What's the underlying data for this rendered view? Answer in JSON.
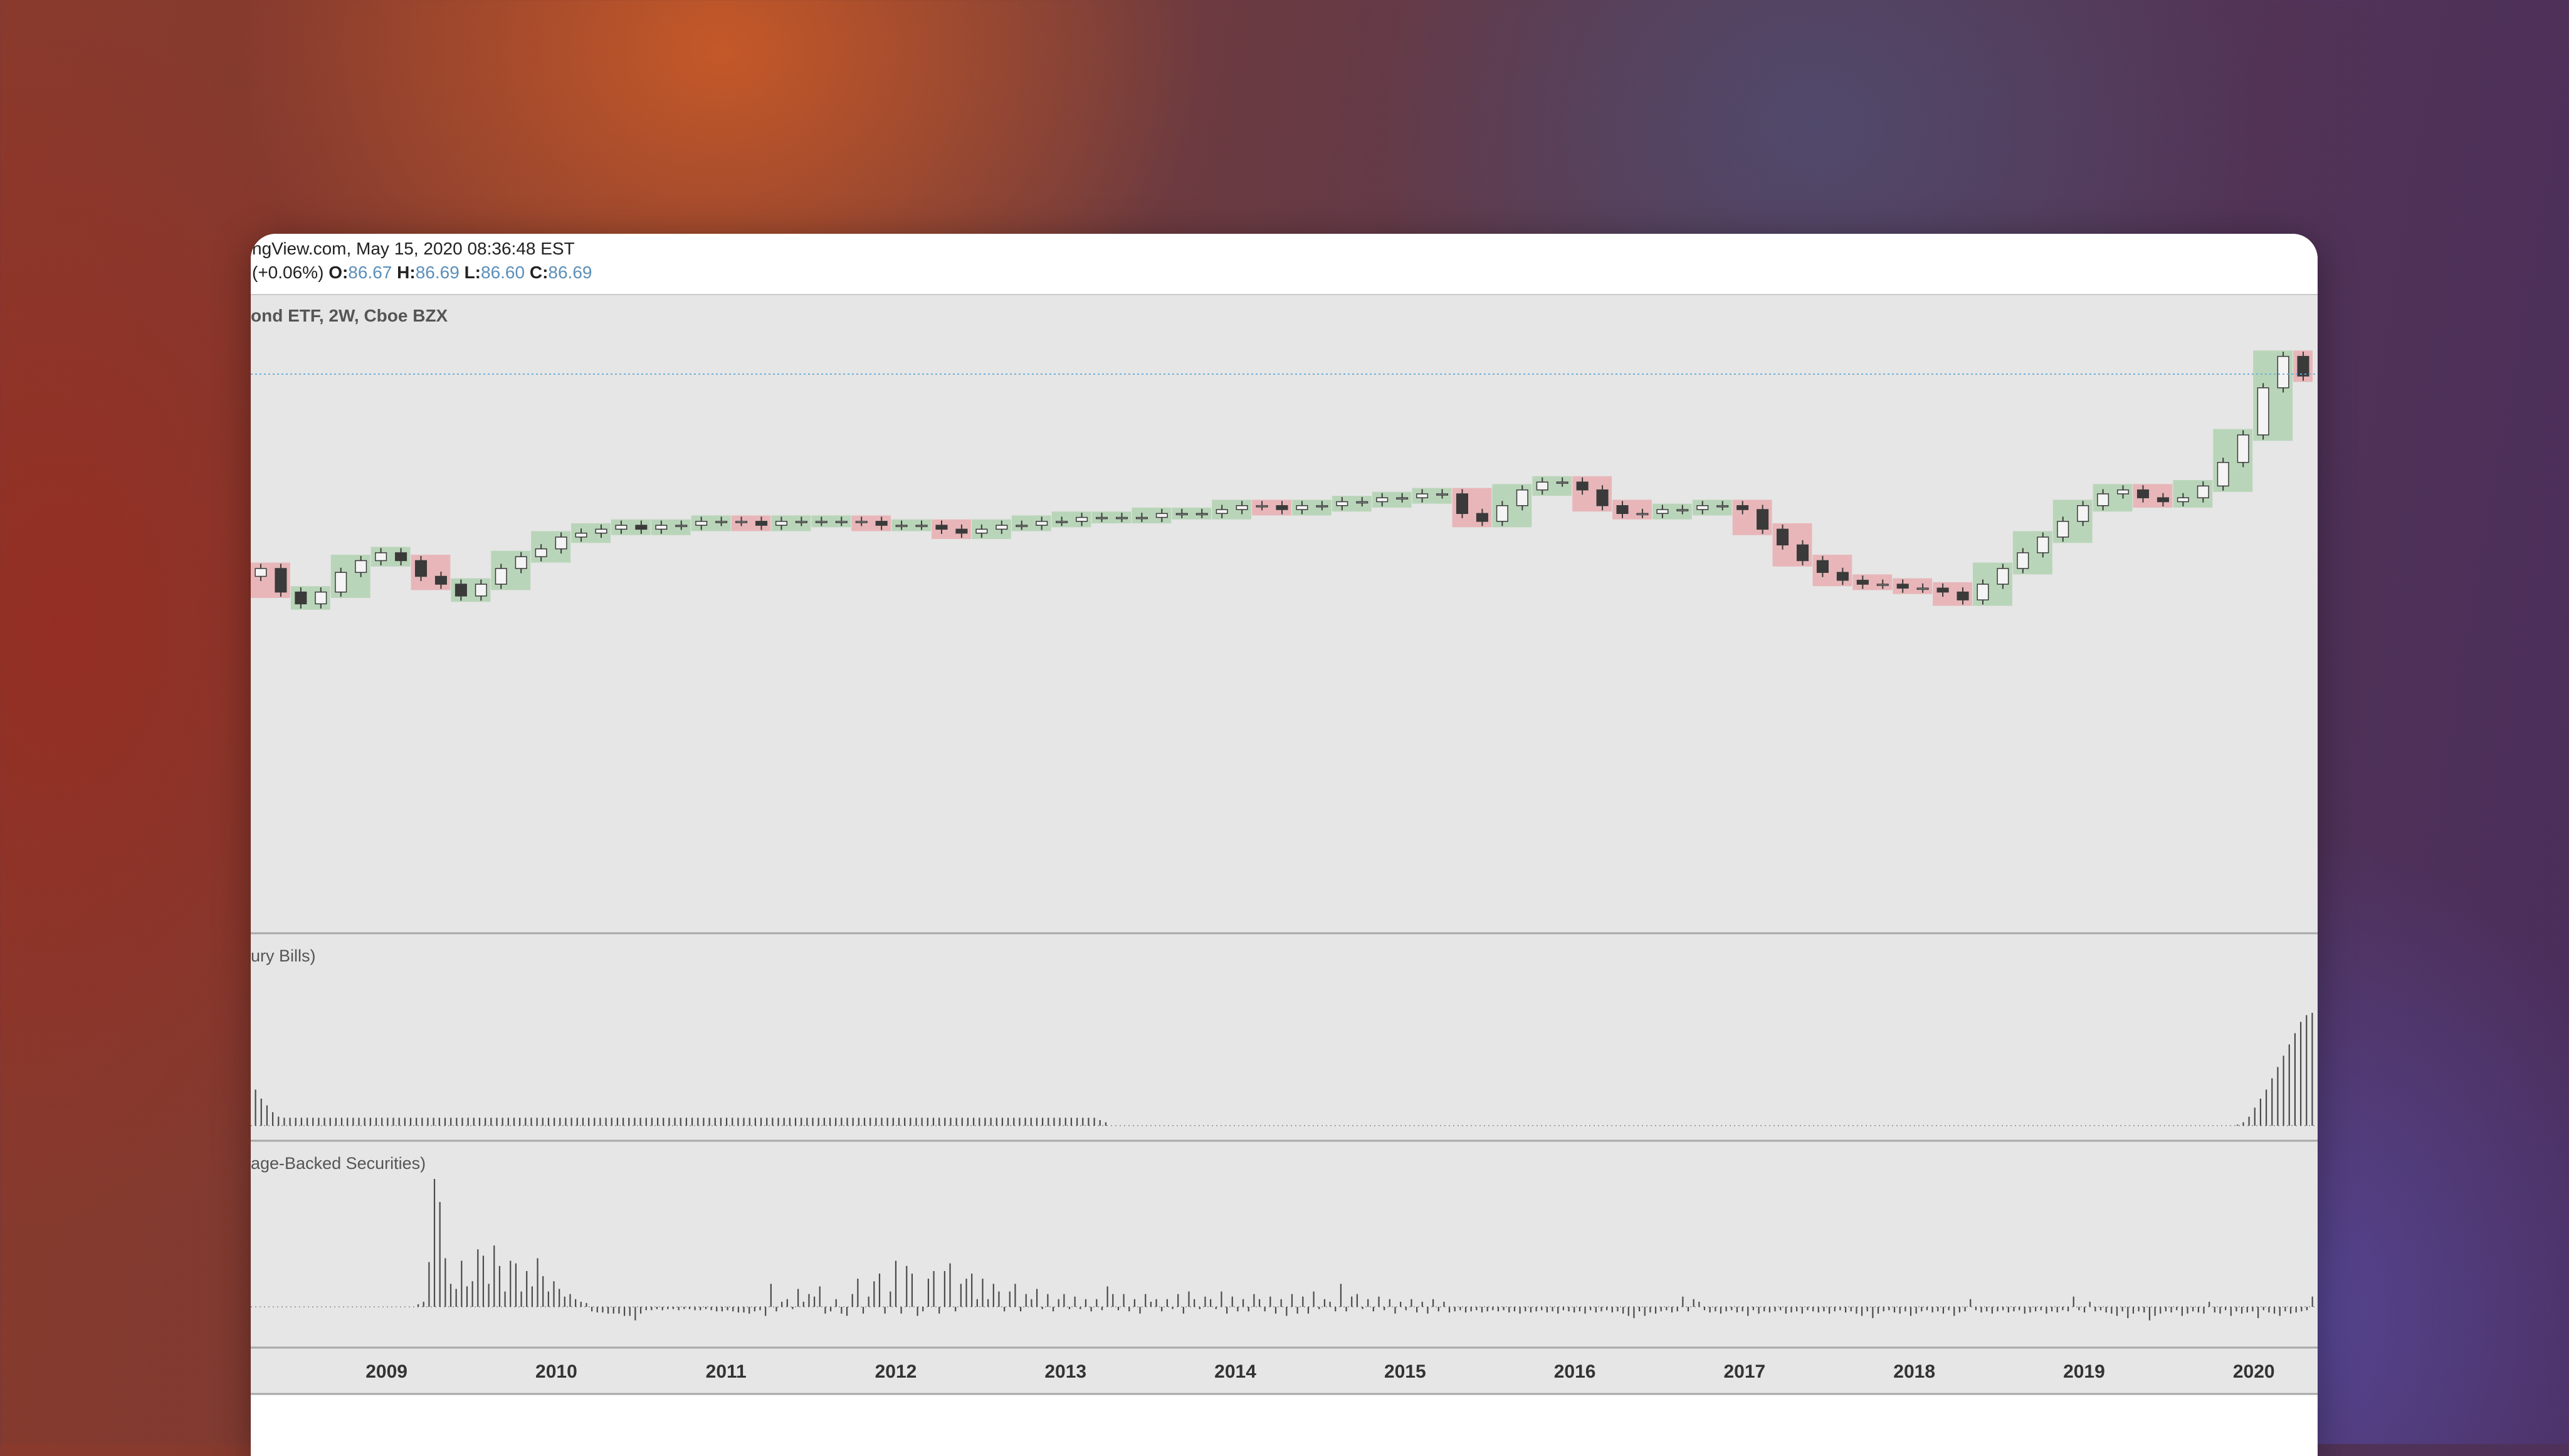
{
  "header": {
    "line1": "ngView.com, May 15, 2020 08:36:48 EST",
    "change": "(+0.06%)",
    "o_label": "O:",
    "o_value": "86.67",
    "h_label": "H:",
    "h_value": "86.69",
    "l_label": "L:",
    "l_value": "86.60",
    "c_label": "C:",
    "c_value": "86.69"
  },
  "panes": {
    "main_title": "ond ETF, 2W, Cboe BZX",
    "pane2_title": "ury Bills)",
    "pane3_title": "age-Backed Securities)"
  },
  "colors": {
    "up_box": "#a9cfa9",
    "down_box": "#e8a6aa",
    "candle": "#3a3a3a",
    "pane_bg": "#e6e6e6",
    "price_line": "#6aaed6"
  },
  "chart_data": [
    {
      "type": "candlestick",
      "name": "price",
      "x_axis": {
        "tick_labels": [
          "2009",
          "2010",
          "2011",
          "2012",
          "2013",
          "2014",
          "2015",
          "2016",
          "2017",
          "2018",
          "2019",
          "2020"
        ]
      },
      "ylim": [
        75,
        90
      ],
      "series": [
        {
          "values": [
            84.0,
            83.4,
            83.1,
            83.4,
            83.9,
            84.2,
            84.4,
            84.2,
            83.8,
            83.6,
            83.3,
            83.6,
            84.0,
            84.3,
            84.5,
            84.8,
            84.9,
            85.0,
            85.1,
            85.0,
            85.1,
            85.1,
            85.2,
            85.2,
            85.2,
            85.1,
            85.2,
            85.2,
            85.2,
            85.2,
            85.2,
            85.1,
            85.1,
            85.1,
            85.0,
            84.9,
            85.0,
            85.1,
            85.1,
            85.2,
            85.2,
            85.3,
            85.3,
            85.3,
            85.3,
            85.4,
            85.4,
            85.4,
            85.5,
            85.6,
            85.6,
            85.5,
            85.6,
            85.6,
            85.7,
            85.7,
            85.8,
            85.8,
            85.9,
            85.9,
            85.4,
            85.2,
            85.6,
            86.0,
            86.2,
            86.2,
            86.0,
            85.6,
            85.4,
            85.4,
            85.5,
            85.5,
            85.6,
            85.6,
            85.5,
            85.0,
            84.6,
            84.2,
            83.9,
            83.7,
            83.6,
            83.6,
            83.5,
            83.5,
            83.4,
            83.2,
            83.6,
            84.0,
            84.4,
            84.8,
            85.2,
            85.6,
            85.9,
            86.0,
            85.8,
            85.7,
            85.8,
            86.1,
            86.7,
            87.4,
            88.6,
            89.4,
            88.9
          ]
        }
      ]
    },
    {
      "type": "bar",
      "name": "ury Bills)",
      "ylim": [
        0,
        100
      ],
      "series": [
        {
          "values": [
            32,
            24,
            18,
            12,
            8,
            7,
            7,
            7,
            7,
            7,
            7,
            7,
            7,
            7,
            7,
            7,
            7,
            7,
            7,
            7,
            7,
            7,
            7,
            7,
            7,
            7,
            7,
            7,
            7,
            7,
            7,
            7,
            7,
            7,
            7,
            7,
            7,
            7,
            7,
            7,
            7,
            7,
            7,
            7,
            7,
            7,
            7,
            7,
            7,
            7,
            7,
            7,
            7,
            7,
            7,
            7,
            7,
            7,
            7,
            7,
            7,
            7,
            7,
            7,
            7,
            7,
            7,
            7,
            7,
            7,
            7,
            7,
            7,
            7,
            7,
            7,
            7,
            7,
            7,
            7,
            7,
            7,
            7,
            7,
            7,
            7,
            7,
            7,
            7,
            7,
            7,
            7,
            7,
            7,
            7,
            7,
            7,
            7,
            7,
            7,
            7,
            7,
            7,
            7,
            7,
            7,
            7,
            7,
            7,
            7,
            7,
            7,
            7,
            7,
            7,
            7,
            7,
            7,
            7,
            7,
            7,
            7,
            7,
            7,
            7,
            7,
            7,
            7,
            7,
            7,
            7,
            7,
            7,
            7,
            7,
            7,
            7,
            7,
            7,
            7,
            7,
            7,
            7,
            7,
            7,
            7,
            7,
            5,
            3,
            0,
            0,
            0,
            0,
            0,
            0,
            0,
            0,
            0,
            0,
            0,
            0,
            0,
            0,
            0,
            0,
            0,
            0,
            0,
            0,
            0,
            0,
            0,
            0,
            0,
            0,
            0,
            0,
            0,
            0,
            0,
            0,
            0,
            0,
            0,
            0,
            0,
            0,
            0,
            0,
            0,
            0,
            0,
            0,
            0,
            0,
            0,
            0,
            0,
            0,
            0,
            0,
            0,
            0,
            0,
            0,
            0,
            0,
            0,
            0,
            0,
            0,
            0,
            0,
            0,
            0,
            0,
            0,
            0,
            0,
            0,
            0,
            0,
            0,
            0,
            0,
            0,
            0,
            0,
            0,
            0,
            0,
            0,
            0,
            0,
            0,
            0,
            0,
            0,
            0,
            0,
            0,
            0,
            0,
            0,
            0,
            0,
            0,
            0,
            0,
            0,
            0,
            0,
            0,
            0,
            0,
            0,
            0,
            0,
            0,
            0,
            0,
            0,
            0,
            0,
            0,
            0,
            0,
            0,
            0,
            0,
            0,
            0,
            0,
            0,
            0,
            0,
            0,
            0,
            0,
            0,
            0,
            0,
            0,
            0,
            0,
            0,
            0,
            0,
            0,
            0,
            0,
            0,
            0,
            0,
            0,
            0,
            0,
            0,
            0,
            0,
            0,
            0,
            0,
            0,
            0,
            0,
            0,
            0,
            0,
            0,
            0,
            0,
            0,
            0,
            0,
            0,
            0,
            0,
            0,
            0,
            0,
            0,
            0,
            0,
            0,
            0,
            0,
            0,
            0,
            0,
            0,
            0,
            0,
            0,
            0,
            0,
            0,
            0,
            0,
            0,
            0,
            0,
            0,
            0,
            0,
            1,
            3,
            8,
            16,
            24,
            32,
            42,
            52,
            62,
            72,
            82,
            92,
            98,
            100
          ]
        }
      ]
    },
    {
      "type": "bar",
      "name": "age-Backed Securities)",
      "ylim": [
        -20,
        100
      ],
      "series": [
        {
          "values": [
            0,
            0,
            0,
            0,
            0,
            0,
            0,
            0,
            0,
            0,
            0,
            0,
            0,
            0,
            0,
            0,
            0,
            0,
            0,
            0,
            0,
            0,
            0,
            0,
            0,
            0,
            0,
            0,
            0,
            0,
            2,
            4,
            35,
            100,
            82,
            38,
            18,
            14,
            36,
            16,
            20,
            45,
            40,
            18,
            48,
            32,
            12,
            36,
            34,
            12,
            28,
            16,
            38,
            24,
            12,
            20,
            14,
            8,
            10,
            6,
            4,
            3,
            -4,
            -5,
            -5,
            -6,
            -6,
            -6,
            -8,
            -8,
            -12,
            -6,
            -3,
            -3,
            -2,
            -3,
            -2,
            -2,
            -3,
            -2,
            -2,
            -3,
            -3,
            -2,
            -3,
            -4,
            -4,
            -3,
            -4,
            -5,
            -5,
            -6,
            -4,
            -3,
            -8,
            18,
            -4,
            4,
            6,
            -2,
            14,
            4,
            10,
            8,
            16,
            -6,
            -4,
            6,
            -6,
            -8,
            10,
            22,
            -6,
            8,
            20,
            26,
            -6,
            12,
            36,
            -6,
            32,
            26,
            -8,
            -4,
            22,
            28,
            -6,
            28,
            34,
            -4,
            18,
            22,
            26,
            6,
            22,
            6,
            18,
            12,
            -4,
            12,
            18,
            -4,
            10,
            6,
            14,
            -2,
            10,
            -4,
            6,
            10,
            -2,
            8,
            -2,
            6,
            -4,
            6,
            -3,
            16,
            10,
            -3,
            10,
            -4,
            6,
            -6,
            10,
            4,
            6,
            -4,
            6,
            -2,
            10,
            -6,
            12,
            6,
            -2,
            8,
            6,
            -2,
            12,
            -6,
            8,
            -4,
            6,
            -4,
            10,
            6,
            -4,
            8,
            -6,
            6,
            -8,
            10,
            -6,
            8,
            -6,
            12,
            -2,
            6,
            4,
            -4,
            18,
            -4,
            8,
            10,
            -2,
            6,
            -4,
            8,
            -3,
            6,
            -6,
            4,
            -3,
            6,
            -5,
            4,
            -6,
            6,
            -4,
            4,
            -5,
            -4,
            -3,
            -5,
            -4,
            -3,
            -5,
            -4,
            -3,
            -4,
            -3,
            -5,
            -4,
            -6,
            -4,
            -5,
            -4,
            -3,
            -5,
            -4,
            -6,
            -3,
            -4,
            -5,
            -4,
            -6,
            -3,
            -5,
            -4,
            -3,
            -5,
            -4,
            -6,
            -8,
            -10,
            -4,
            -8,
            -5,
            -6,
            -4,
            -3,
            -5,
            -4,
            8,
            -4,
            6,
            4,
            -3,
            -5,
            -4,
            -6,
            -4,
            -3,
            -5,
            -4,
            -8,
            -3,
            -6,
            -4,
            -5,
            -4,
            -3,
            -6,
            -5,
            -4,
            -6,
            -3,
            -4,
            -5,
            -4,
            -6,
            -4,
            -3,
            -5,
            -4,
            -6,
            -8,
            -4,
            -10,
            -6,
            -4,
            -3,
            -5,
            -6,
            -4,
            -8,
            -6,
            -4,
            -3,
            -5,
            -4,
            -6,
            -3,
            -8,
            -5,
            -4,
            6,
            -3,
            -5,
            -4,
            -6,
            -4,
            -3,
            -5,
            -4,
            -3,
            -6,
            -5,
            -4,
            -3,
            -6,
            -4,
            -5,
            -3,
            -4,
            8,
            -3,
            -5,
            4,
            -4,
            -3,
            -5,
            -6,
            -8,
            -4,
            -10,
            -6,
            -4,
            -5,
            -12,
            -8,
            -6,
            -4,
            -5,
            -3,
            -8,
            -6,
            -4,
            -5,
            -6,
            4,
            -5,
            -6,
            -3,
            -8,
            -4,
            -6,
            -5,
            -4,
            -10,
            -3,
            -5,
            -6,
            -8,
            -4,
            -6,
            -5,
            -4,
            -3,
            8
          ]
        }
      ]
    }
  ]
}
